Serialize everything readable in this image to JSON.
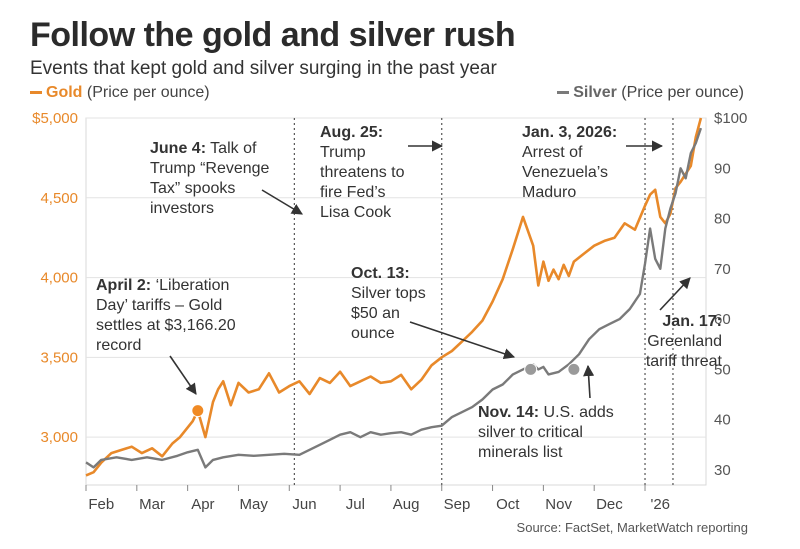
{
  "chart_data": {
    "type": "line",
    "title": "Follow the gold and silver rush",
    "subtitle": "Events that kept gold and silver surging in the past year",
    "legend": [
      {
        "name": "Gold",
        "unit": "(Price per ounce)",
        "color": "#e8892a"
      },
      {
        "name": "Silver",
        "unit": "(Price per ounce)",
        "color": "#7a7a7a"
      }
    ],
    "source": "Source: FactSet, MarketWatch reporting",
    "x_ticks": [
      "Feb",
      "Mar",
      "Apr",
      "May",
      "Jun",
      "Jul",
      "Aug",
      "Sep",
      "Oct",
      "Nov",
      "Dec",
      "'26"
    ],
    "y_left": {
      "ticks": [
        "$5,000",
        "4,500",
        "4,000",
        "3,500",
        "3,000"
      ],
      "range": [
        2700,
        5000
      ]
    },
    "y_right": {
      "ticks": [
        "$100",
        "90",
        "80",
        "70",
        "60",
        "50",
        "40",
        "30"
      ],
      "range": [
        27,
        100
      ]
    },
    "x_range": [
      0,
      12.2
    ],
    "series": [
      {
        "name": "Gold",
        "axis": "left",
        "color": "#e8892a",
        "x": [
          0,
          0.15,
          0.3,
          0.5,
          0.7,
          0.9,
          1.1,
          1.3,
          1.5,
          1.7,
          1.85,
          2.0,
          2.1,
          2.2,
          2.35,
          2.5,
          2.6,
          2.7,
          2.85,
          3.0,
          3.2,
          3.4,
          3.6,
          3.8,
          4.0,
          4.2,
          4.4,
          4.6,
          4.8,
          5.0,
          5.2,
          5.4,
          5.6,
          5.8,
          6.0,
          6.2,
          6.4,
          6.6,
          6.8,
          7.0,
          7.2,
          7.4,
          7.6,
          7.8,
          8.0,
          8.2,
          8.4,
          8.6,
          8.8,
          8.9,
          9.0,
          9.1,
          9.2,
          9.3,
          9.4,
          9.5,
          9.6,
          9.8,
          10.0,
          10.2,
          10.4,
          10.6,
          10.8,
          11.0,
          11.1,
          11.2,
          11.3,
          11.4,
          11.5,
          11.6,
          11.7,
          11.8,
          11.9,
          12.0,
          12.1
        ],
        "y": [
          2760,
          2780,
          2840,
          2900,
          2920,
          2940,
          2900,
          2930,
          2880,
          2960,
          3000,
          3060,
          3100,
          3166,
          3000,
          3220,
          3300,
          3350,
          3200,
          3340,
          3280,
          3300,
          3400,
          3280,
          3320,
          3350,
          3270,
          3370,
          3340,
          3410,
          3320,
          3350,
          3380,
          3340,
          3350,
          3390,
          3300,
          3360,
          3450,
          3500,
          3540,
          3600,
          3660,
          3730,
          3850,
          3990,
          4180,
          4380,
          4200,
          3950,
          4100,
          3980,
          4050,
          3990,
          4080,
          4010,
          4100,
          4150,
          4200,
          4230,
          4250,
          4340,
          4300,
          4450,
          4520,
          4550,
          4380,
          4340,
          4400,
          4560,
          4600,
          4650,
          4700,
          4880,
          5000
        ]
      },
      {
        "name": "Silver",
        "axis": "right",
        "color": "#7a7a7a",
        "x": [
          0,
          0.15,
          0.3,
          0.6,
          0.9,
          1.2,
          1.5,
          1.8,
          2.0,
          2.2,
          2.35,
          2.5,
          2.7,
          3.0,
          3.3,
          3.6,
          3.9,
          4.2,
          4.4,
          4.6,
          4.8,
          5.0,
          5.2,
          5.4,
          5.6,
          5.8,
          6.0,
          6.2,
          6.4,
          6.6,
          6.8,
          7.0,
          7.2,
          7.4,
          7.6,
          7.8,
          8.0,
          8.2,
          8.4,
          8.6,
          8.8,
          8.9,
          9.0,
          9.1,
          9.3,
          9.5,
          9.7,
          9.9,
          10.1,
          10.3,
          10.5,
          10.7,
          10.9,
          11.0,
          11.1,
          11.2,
          11.3,
          11.4,
          11.5,
          11.6,
          11.7,
          11.8,
          11.9,
          12.0,
          12.1
        ],
        "y": [
          31.5,
          30.5,
          32,
          32.5,
          32,
          32.5,
          32,
          32.8,
          33.5,
          34,
          30.5,
          32,
          32.5,
          33,
          32.8,
          33,
          33.2,
          33,
          34,
          35,
          36,
          37,
          37.5,
          36.5,
          37.5,
          37,
          37.3,
          37.5,
          37,
          38,
          38.5,
          38.8,
          40.5,
          41.5,
          42.5,
          44,
          46,
          47,
          49,
          50,
          51,
          50,
          50.5,
          49,
          49.5,
          51,
          53,
          56,
          58,
          59,
          60,
          62,
          65,
          71,
          78,
          72,
          70,
          78,
          82,
          85,
          90,
          88,
          93,
          95,
          98
        ]
      }
    ],
    "markers": [
      {
        "series": "Gold",
        "x": 2.2,
        "y": 3166
      },
      {
        "series": "Silver",
        "x": 8.75,
        "y": 50
      },
      {
        "series": "Silver",
        "x": 9.6,
        "y": 50
      }
    ],
    "event_lines": [
      {
        "x": 4.1
      },
      {
        "x": 7.0
      },
      {
        "x": 11.0
      },
      {
        "x": 11.55
      }
    ],
    "annotations": [
      {
        "lines": [
          [
            "June 4:",
            " Talk of"
          ],
          [
            "",
            "Trump “Revenge"
          ],
          [
            "",
            "Tax” spooks"
          ],
          [
            "",
            "investors"
          ]
        ]
      },
      {
        "lines": [
          [
            "Aug. 25:",
            ""
          ],
          [
            "",
            "Trump"
          ],
          [
            "",
            "threatens to"
          ],
          [
            "",
            "fire Fed’s"
          ],
          [
            "",
            "Lisa Cook"
          ]
        ]
      },
      {
        "lines": [
          [
            "Jan. 3, 2026:",
            ""
          ],
          [
            "",
            "Arrest of"
          ],
          [
            "",
            "Venezuela’s"
          ],
          [
            "",
            "Maduro"
          ]
        ]
      },
      {
        "lines": [
          [
            "April 2:",
            " ‘Liberation"
          ],
          [
            "",
            "Day’ tariffs – Gold"
          ],
          [
            "",
            "settles at $3,166.20"
          ],
          [
            "",
            "record"
          ]
        ]
      },
      {
        "lines": [
          [
            "Oct. 13:",
            ""
          ],
          [
            "",
            "Silver tops"
          ],
          [
            "",
            "$50 an"
          ],
          [
            "",
            "ounce"
          ]
        ]
      },
      {
        "lines": [
          [
            "Jan. 17:",
            ""
          ],
          [
            "",
            "Greenland"
          ],
          [
            "",
            "tariff threat"
          ]
        ]
      },
      {
        "lines": [
          [
            "Nov. 14:",
            " U.S. adds"
          ],
          [
            "",
            "silver to critical"
          ],
          [
            "",
            "minerals list"
          ]
        ]
      }
    ]
  }
}
